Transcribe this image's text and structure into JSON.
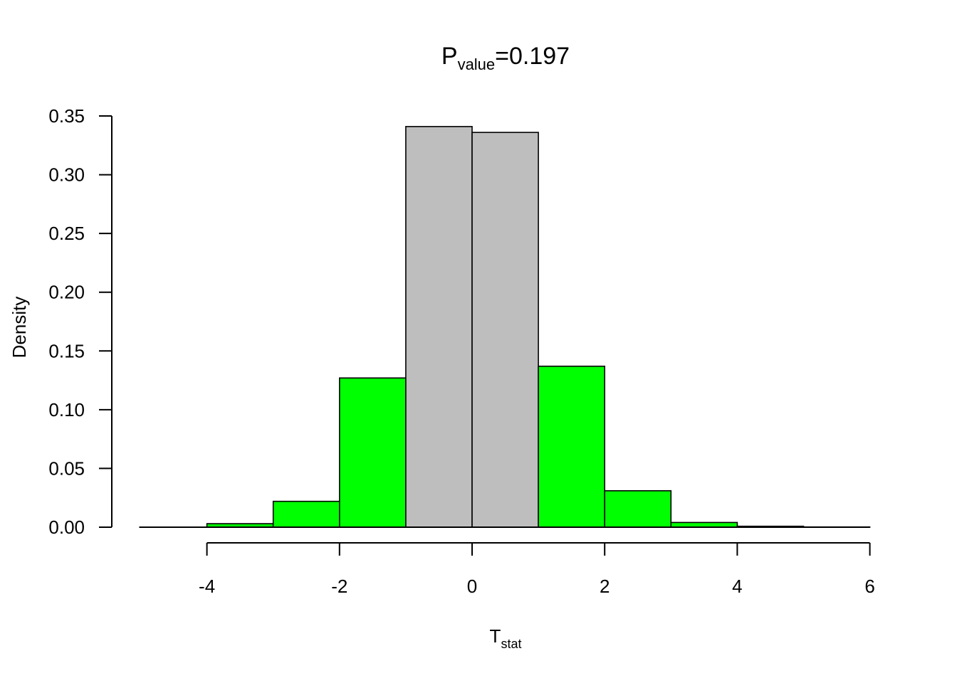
{
  "chart_data": {
    "type": "bar",
    "title": {
      "main": "P",
      "subscript": "value",
      "suffix": "=0.197"
    },
    "xlabel": {
      "main": "T",
      "subscript": "stat"
    },
    "ylabel": "Density",
    "xlim": [
      -5,
      6
    ],
    "ylim": [
      0,
      0.35
    ],
    "x_ticks": [
      -4,
      -2,
      0,
      2,
      4,
      6
    ],
    "x_tick_labels": [
      "-4",
      "-2",
      "0",
      "2",
      "4",
      "6"
    ],
    "y_ticks": [
      0,
      0.05,
      0.1,
      0.15,
      0.2,
      0.25,
      0.3,
      0.35
    ],
    "y_tick_labels": [
      "0.00",
      "0.05",
      "0.10",
      "0.15",
      "0.20",
      "0.25",
      "0.30",
      "0.35"
    ],
    "grid": false,
    "colors": {
      "tail": "#00ff00",
      "center": "#bebebe",
      "outline": "#000000"
    },
    "bins": [
      {
        "x0": -5,
        "x1": -4,
        "density": 0.0,
        "color": "tail"
      },
      {
        "x0": -4,
        "x1": -3,
        "density": 0.003,
        "color": "tail"
      },
      {
        "x0": -3,
        "x1": -2,
        "density": 0.022,
        "color": "tail"
      },
      {
        "x0": -2,
        "x1": -1,
        "density": 0.127,
        "color": "tail"
      },
      {
        "x0": -1,
        "x1": 0,
        "density": 0.341,
        "color": "center"
      },
      {
        "x0": 0,
        "x1": 1,
        "density": 0.336,
        "color": "center"
      },
      {
        "x0": 1,
        "x1": 2,
        "density": 0.137,
        "color": "tail"
      },
      {
        "x0": 2,
        "x1": 3,
        "density": 0.031,
        "color": "tail"
      },
      {
        "x0": 3,
        "x1": 4,
        "density": 0.004,
        "color": "tail"
      },
      {
        "x0": 4,
        "x1": 5,
        "density": 0.0008,
        "color": "tail"
      },
      {
        "x0": 5,
        "x1": 6,
        "density": 0.0002,
        "color": "tail"
      }
    ]
  }
}
